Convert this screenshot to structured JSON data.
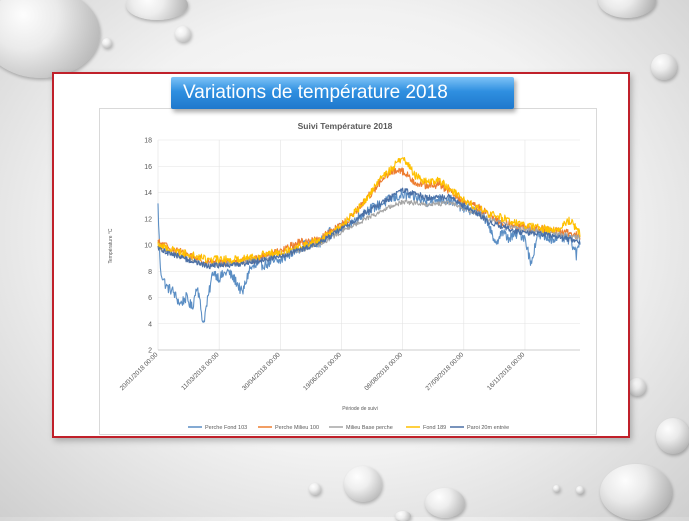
{
  "slide": {
    "title": "Variations de température 2018"
  },
  "chart_data": {
    "type": "line",
    "title": "Suivi Température 2018",
    "xlabel": "Période de suivi",
    "ylabel": "Température °C",
    "ylim": [
      2,
      18
    ],
    "yticks": [
      2,
      4,
      6,
      8,
      10,
      12,
      14,
      16,
      18
    ],
    "xlim": [
      "2018-01-20",
      "2018-12-31"
    ],
    "xticks": [
      "20/01/2018 00:00",
      "11/03/2018 00:00",
      "30/04/2018 00:00",
      "19/06/2018 00:00",
      "08/08/2018 00:00",
      "27/09/2018 00:00",
      "16/11/2018 00:00"
    ],
    "grid": true,
    "legend_position": "bottom",
    "series": [
      {
        "name": "Perche Fond 103",
        "color": "#5b8ec4",
        "noise": 0.4,
        "points": [
          [
            "2018-01-20",
            13.0
          ],
          [
            "2018-01-22",
            8.0
          ],
          [
            "2018-01-27",
            6.8
          ],
          [
            "2018-02-01",
            6.5
          ],
          [
            "2018-02-07",
            5.5
          ],
          [
            "2018-02-12",
            6.0
          ],
          [
            "2018-02-17",
            5.2
          ],
          [
            "2018-02-21",
            7.0
          ],
          [
            "2018-02-26",
            4.0
          ],
          [
            "2018-03-03",
            6.5
          ],
          [
            "2018-03-06",
            8.0
          ],
          [
            "2018-03-11",
            7.5
          ],
          [
            "2018-03-18",
            8.0
          ],
          [
            "2018-03-25",
            7.2
          ],
          [
            "2018-03-30",
            6.3
          ],
          [
            "2018-04-05",
            8.2
          ],
          [
            "2018-04-15",
            8.5
          ],
          [
            "2018-04-25",
            8.7
          ],
          [
            "2018-04-30",
            8.8
          ],
          [
            "2018-05-10",
            9.5
          ],
          [
            "2018-05-20",
            10.0
          ],
          [
            "2018-05-31",
            10.1
          ],
          [
            "2018-06-10",
            11.0
          ],
          [
            "2018-06-19",
            11.3
          ],
          [
            "2018-06-29",
            11.8
          ],
          [
            "2018-07-09",
            12.6
          ],
          [
            "2018-07-19",
            13.0
          ],
          [
            "2018-07-29",
            13.5
          ],
          [
            "2018-08-08",
            13.8
          ],
          [
            "2018-08-18",
            13.6
          ],
          [
            "2018-08-28",
            13.3
          ],
          [
            "2018-09-07",
            13.5
          ],
          [
            "2018-09-17",
            13.4
          ],
          [
            "2018-09-27",
            12.8
          ],
          [
            "2018-10-07",
            12.6
          ],
          [
            "2018-10-17",
            11.8
          ],
          [
            "2018-10-22",
            10.0
          ],
          [
            "2018-10-28",
            11.0
          ],
          [
            "2018-11-03",
            10.5
          ],
          [
            "2018-11-10",
            10.9
          ],
          [
            "2018-11-16",
            10.6
          ],
          [
            "2018-11-21",
            8.5
          ],
          [
            "2018-11-26",
            10.8
          ],
          [
            "2018-12-05",
            10.5
          ],
          [
            "2018-12-15",
            10.6
          ],
          [
            "2018-12-24",
            10.3
          ],
          [
            "2018-12-28",
            9.2
          ],
          [
            "2018-12-31",
            10.4
          ]
        ]
      },
      {
        "name": "Perche Milieu  100",
        "color": "#ed7d31",
        "noise": 0.3,
        "points": [
          [
            "2018-01-20",
            10.2
          ],
          [
            "2018-02-01",
            9.7
          ],
          [
            "2018-02-15",
            9.2
          ],
          [
            "2018-03-01",
            8.7
          ],
          [
            "2018-03-11",
            8.6
          ],
          [
            "2018-03-25",
            8.8
          ],
          [
            "2018-04-10",
            8.9
          ],
          [
            "2018-04-30",
            9.5
          ],
          [
            "2018-05-15",
            10.2
          ],
          [
            "2018-05-31",
            10.4
          ],
          [
            "2018-06-19",
            11.5
          ],
          [
            "2018-06-29",
            12.3
          ],
          [
            "2018-07-09",
            13.5
          ],
          [
            "2018-07-19",
            14.6
          ],
          [
            "2018-07-29",
            15.5
          ],
          [
            "2018-08-05",
            15.8
          ],
          [
            "2018-08-08",
            15.6
          ],
          [
            "2018-08-18",
            14.8
          ],
          [
            "2018-08-28",
            14.5
          ],
          [
            "2018-09-07",
            14.6
          ],
          [
            "2018-09-17",
            14.0
          ],
          [
            "2018-09-27",
            13.3
          ],
          [
            "2018-10-10",
            12.8
          ],
          [
            "2018-10-20",
            12.2
          ],
          [
            "2018-10-28",
            11.6
          ],
          [
            "2018-11-10",
            11.5
          ],
          [
            "2018-11-16",
            11.3
          ],
          [
            "2018-12-01",
            11.2
          ],
          [
            "2018-12-15",
            11.0
          ],
          [
            "2018-12-31",
            10.7
          ]
        ]
      },
      {
        "name": "Milieu  Base perche",
        "color": "#a5a5a5",
        "noise": 0.18,
        "points": [
          [
            "2018-01-20",
            9.8
          ],
          [
            "2018-02-10",
            9.0
          ],
          [
            "2018-03-01",
            8.5
          ],
          [
            "2018-03-25",
            8.6
          ],
          [
            "2018-04-30",
            9.2
          ],
          [
            "2018-05-31",
            10.0
          ],
          [
            "2018-06-19",
            11.0
          ],
          [
            "2018-07-09",
            12.0
          ],
          [
            "2018-07-29",
            12.9
          ],
          [
            "2018-08-08",
            13.3
          ],
          [
            "2018-08-28",
            13.1
          ],
          [
            "2018-09-17",
            13.2
          ],
          [
            "2018-09-27",
            12.8
          ],
          [
            "2018-10-17",
            12.0
          ],
          [
            "2018-11-10",
            11.3
          ],
          [
            "2018-12-01",
            11.0
          ],
          [
            "2018-12-31",
            10.6
          ]
        ]
      },
      {
        "name": "Fond 189",
        "color": "#ffc000",
        "noise": 0.3,
        "points": [
          [
            "2018-01-20",
            10.0
          ],
          [
            "2018-02-10",
            9.4
          ],
          [
            "2018-03-01",
            8.9
          ],
          [
            "2018-03-25",
            8.9
          ],
          [
            "2018-04-30",
            9.5
          ],
          [
            "2018-05-31",
            10.3
          ],
          [
            "2018-06-19",
            11.4
          ],
          [
            "2018-07-09",
            13.4
          ],
          [
            "2018-07-19",
            14.9
          ],
          [
            "2018-07-29",
            15.7
          ],
          [
            "2018-08-05",
            16.4
          ],
          [
            "2018-08-08",
            16.8
          ],
          [
            "2018-08-18",
            15.3
          ],
          [
            "2018-08-28",
            14.8
          ],
          [
            "2018-09-07",
            14.9
          ],
          [
            "2018-09-17",
            14.2
          ],
          [
            "2018-09-27",
            13.4
          ],
          [
            "2018-10-17",
            12.4
          ],
          [
            "2018-11-16",
            11.5
          ],
          [
            "2018-12-10",
            11.1
          ],
          [
            "2018-12-23",
            11.9
          ],
          [
            "2018-12-31",
            10.9
          ]
        ]
      },
      {
        "name": "Paroi 20m entrée",
        "color": "#4a6fa5",
        "noise": 0.22,
        "points": [
          [
            "2018-01-20",
            9.7
          ],
          [
            "2018-02-10",
            9.0
          ],
          [
            "2018-03-01",
            8.4
          ],
          [
            "2018-03-25",
            8.5
          ],
          [
            "2018-04-30",
            9.1
          ],
          [
            "2018-05-31",
            10.1
          ],
          [
            "2018-06-19",
            11.2
          ],
          [
            "2018-07-09",
            12.5
          ],
          [
            "2018-07-29",
            13.6
          ],
          [
            "2018-08-08",
            14.2
          ],
          [
            "2018-08-28",
            13.6
          ],
          [
            "2018-09-17",
            13.7
          ],
          [
            "2018-09-27",
            13.0
          ],
          [
            "2018-10-17",
            11.8
          ],
          [
            "2018-11-10",
            11.0
          ],
          [
            "2018-12-01",
            10.8
          ],
          [
            "2018-12-31",
            10.3
          ]
        ]
      }
    ]
  }
}
